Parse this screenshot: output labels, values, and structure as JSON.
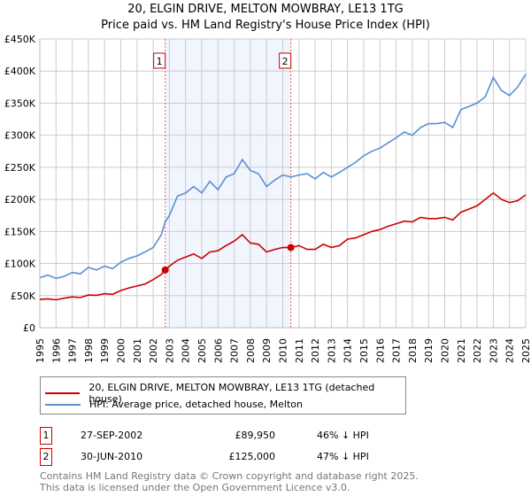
{
  "chart_data": {
    "type": "line",
    "title": "20, ELGIN DRIVE, MELTON MOWBRAY, LE13 1TG",
    "subtitle": "Price paid vs. HM Land Registry's House Price Index (HPI)",
    "xlim": [
      1995,
      2025
    ],
    "ylim": [
      0,
      450000
    ],
    "yticks": [
      0,
      50000,
      100000,
      150000,
      200000,
      250000,
      300000,
      350000,
      400000,
      450000
    ],
    "ytick_labels": [
      "£0",
      "£50K",
      "£100K",
      "£150K",
      "£200K",
      "£250K",
      "£300K",
      "£350K",
      "£400K",
      "£450K"
    ],
    "xtick_labels": [
      "1995",
      "1996",
      "1997",
      "1998",
      "1999",
      "2000",
      "2001",
      "2002",
      "2003",
      "2004",
      "2005",
      "2006",
      "2007",
      "2008",
      "2009",
      "2010",
      "2011",
      "2012",
      "2013",
      "2014",
      "2015",
      "2016",
      "2017",
      "2018",
      "2019",
      "2020",
      "2021",
      "2022",
      "2023",
      "2024",
      "2025"
    ],
    "grid": true,
    "shaded_range": [
      2002.74,
      2010.5
    ],
    "series": [
      {
        "name": "20, ELGIN DRIVE, MELTON MOWBRAY, LE13 1TG (detached house)",
        "color": "#cc0000",
        "x": [
          1995,
          1995.5,
          1996,
          1996.5,
          1997,
          1997.5,
          1998,
          1998.5,
          1999,
          1999.5,
          2000,
          2000.5,
          2001,
          2001.5,
          2002,
          2002.5,
          2002.74,
          2003,
          2003.5,
          2004,
          2004.5,
          2005,
          2005.5,
          2006,
          2006.5,
          2007,
          2007.5,
          2008,
          2008.5,
          2009,
          2009.5,
          2010,
          2010.5,
          2011,
          2011.5,
          2012,
          2012.5,
          2013,
          2013.5,
          2014,
          2014.5,
          2015,
          2015.5,
          2016,
          2016.5,
          2017,
          2017.5,
          2018,
          2018.5,
          2019,
          2019.5,
          2020,
          2020.5,
          2021,
          2021.5,
          2022,
          2022.5,
          2023,
          2023.5,
          2024,
          2024.5,
          2025
        ],
        "y": [
          44000,
          45000,
          43500,
          46000,
          48000,
          47000,
          51000,
          50500,
          53000,
          52000,
          58000,
          62000,
          65000,
          68000,
          75000,
          83000,
          89950,
          96000,
          105000,
          110000,
          115000,
          108000,
          118000,
          120000,
          128000,
          135000,
          145000,
          132000,
          130000,
          118000,
          122000,
          125000,
          125000,
          128000,
          122000,
          122000,
          130000,
          125000,
          128000,
          138000,
          140000,
          145000,
          150000,
          153000,
          158000,
          162000,
          166000,
          165000,
          172000,
          170000,
          170000,
          172000,
          168000,
          180000,
          185000,
          190000,
          200000,
          210000,
          200000,
          195000,
          198000,
          207000
        ]
      },
      {
        "name": "HPI: Average price, detached house, Melton",
        "color": "#5b8fd1",
        "x": [
          1995,
          1995.5,
          1996,
          1996.5,
          1997,
          1997.5,
          1998,
          1998.5,
          1999,
          1999.5,
          2000,
          2000.5,
          2001,
          2001.5,
          2002,
          2002.5,
          2002.74,
          2003,
          2003.5,
          2004,
          2004.5,
          2005,
          2005.5,
          2006,
          2006.5,
          2007,
          2007.5,
          2008,
          2008.5,
          2009,
          2009.5,
          2010,
          2010.5,
          2011,
          2011.5,
          2012,
          2012.5,
          2013,
          2013.5,
          2014,
          2014.5,
          2015,
          2015.5,
          2016,
          2016.5,
          2017,
          2017.5,
          2018,
          2018.5,
          2019,
          2019.5,
          2020,
          2020.5,
          2021,
          2021.5,
          2022,
          2022.5,
          2023,
          2023.5,
          2024,
          2024.5,
          2025
        ],
        "y": [
          78000,
          82000,
          77000,
          80000,
          86000,
          84000,
          94000,
          90000,
          96000,
          92000,
          102000,
          108000,
          112000,
          118000,
          125000,
          145000,
          165000,
          175000,
          205000,
          210000,
          220000,
          210000,
          228000,
          215000,
          235000,
          240000,
          262000,
          245000,
          240000,
          220000,
          230000,
          238000,
          235000,
          238000,
          240000,
          232000,
          242000,
          235000,
          242000,
          250000,
          258000,
          268000,
          275000,
          280000,
          288000,
          296000,
          305000,
          300000,
          312000,
          318000,
          318000,
          320000,
          312000,
          340000,
          345000,
          350000,
          360000,
          390000,
          370000,
          362000,
          375000,
          395000
        ]
      }
    ],
    "markers": [
      {
        "label": "1",
        "x": 2002.74,
        "y": 89950
      },
      {
        "label": "2",
        "x": 2010.5,
        "y": 125000
      }
    ]
  },
  "legend": [
    {
      "label": "20, ELGIN DRIVE, MELTON MOWBRAY, LE13 1TG (detached house)",
      "color": "#cc0000"
    },
    {
      "label": "HPI: Average price, detached house, Melton",
      "color": "#5b8fd1"
    }
  ],
  "transactions": [
    {
      "num": "1",
      "date": "27-SEP-2002",
      "price": "£89,950",
      "hpi": "46% ↓ HPI"
    },
    {
      "num": "2",
      "date": "30-JUN-2010",
      "price": "£125,000",
      "hpi": "47% ↓ HPI"
    }
  ],
  "footer": {
    "line1": "Contains HM Land Registry data © Crown copyright and database right 2025.",
    "line2": "This data is licensed under the Open Government Licence v3.0."
  }
}
